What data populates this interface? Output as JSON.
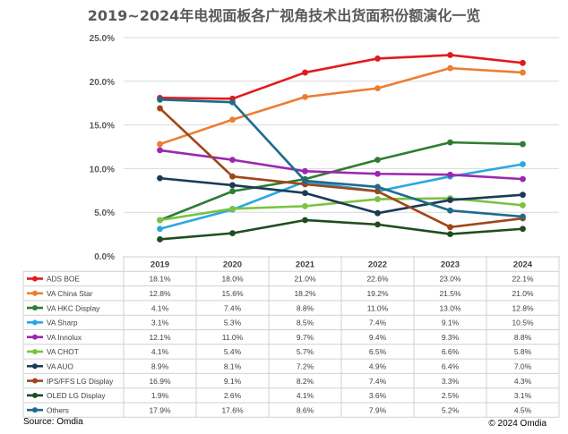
{
  "title": "2019~2024年电视面板各广视角技术出货面积份额演化一览",
  "source": "Source: Omdia",
  "copyright": "© 2024 Omdia",
  "chart_data": {
    "type": "line",
    "title": "2019~2024年电视面板各广视角技术出货面积份额演化一览",
    "xlabel": "",
    "ylabel": "",
    "categories": [
      "2019",
      "2020",
      "2021",
      "2022",
      "2023",
      "2024"
    ],
    "ylim": [
      0,
      25
    ],
    "yticks": [
      "0.0%",
      "5.0%",
      "10.0%",
      "15.0%",
      "20.0%",
      "25.0%"
    ],
    "grid": true,
    "legend": "data-table",
    "series": [
      {
        "name": "ADS BOE",
        "color": "#e31a1c",
        "values": [
          18.1,
          18.0,
          21.0,
          22.6,
          23.0,
          22.1
        ],
        "labels": [
          "18.1%",
          "18.0%",
          "21.0%",
          "22.6%",
          "23.0%",
          "22.1%"
        ]
      },
      {
        "name": "VA China Star",
        "color": "#ed7d31",
        "values": [
          12.8,
          15.6,
          18.2,
          19.2,
          21.5,
          21.0
        ],
        "labels": [
          "12.8%",
          "15.6%",
          "18.2%",
          "19.2%",
          "21.5%",
          "21.0%"
        ]
      },
      {
        "name": "VA HKC Display",
        "color": "#2e7d32",
        "values": [
          4.1,
          7.4,
          8.8,
          11.0,
          13.0,
          12.8
        ],
        "labels": [
          "4.1%",
          "7.4%",
          "8.8%",
          "11.0%",
          "13.0%",
          "12.8%"
        ]
      },
      {
        "name": "VA Sharp",
        "color": "#29a8e0",
        "values": [
          3.1,
          5.3,
          8.5,
          7.4,
          9.1,
          10.5
        ],
        "labels": [
          "3.1%",
          "5.3%",
          "8.5%",
          "7.4%",
          "9.1%",
          "10.5%"
        ]
      },
      {
        "name": "VA Innolux",
        "color": "#9c27b0",
        "values": [
          12.1,
          11.0,
          9.7,
          9.4,
          9.3,
          8.8
        ],
        "labels": [
          "12.1%",
          "11.0%",
          "9.7%",
          "9.4%",
          "9.3%",
          "8.8%"
        ]
      },
      {
        "name": "VA CHOT",
        "color": "#7cc242",
        "values": [
          4.1,
          5.4,
          5.7,
          6.5,
          6.6,
          5.8
        ],
        "labels": [
          "4.1%",
          "5.4%",
          "5.7%",
          "6.5%",
          "6.6%",
          "5.8%"
        ]
      },
      {
        "name": "VA AUO",
        "color": "#1b3a57",
        "values": [
          8.9,
          8.1,
          7.2,
          4.9,
          6.4,
          7.0
        ],
        "labels": [
          "8.9%",
          "8.1%",
          "7.2%",
          "4.9%",
          "6.4%",
          "7.0%"
        ]
      },
      {
        "name": "IPS/FFS LG Display",
        "color": "#a0461a",
        "values": [
          16.9,
          9.1,
          8.2,
          7.4,
          3.3,
          4.3
        ],
        "labels": [
          "16.9%",
          "9.1%",
          "8.2%",
          "7.4%",
          "3.3%",
          "4.3%"
        ]
      },
      {
        "name": "OLED LG Display",
        "color": "#1f4d1f",
        "values": [
          1.9,
          2.6,
          4.1,
          3.6,
          2.5,
          3.1
        ],
        "labels": [
          "1.9%",
          "2.6%",
          "4.1%",
          "3.6%",
          "2.5%",
          "3.1%"
        ]
      },
      {
        "name": "Others",
        "color": "#1f6b8c",
        "values": [
          17.9,
          17.6,
          8.6,
          7.9,
          5.2,
          4.5
        ],
        "labels": [
          "17.9%",
          "17.6%",
          "8.6%",
          "7.9%",
          "5.2%",
          "4.5%"
        ]
      }
    ]
  }
}
